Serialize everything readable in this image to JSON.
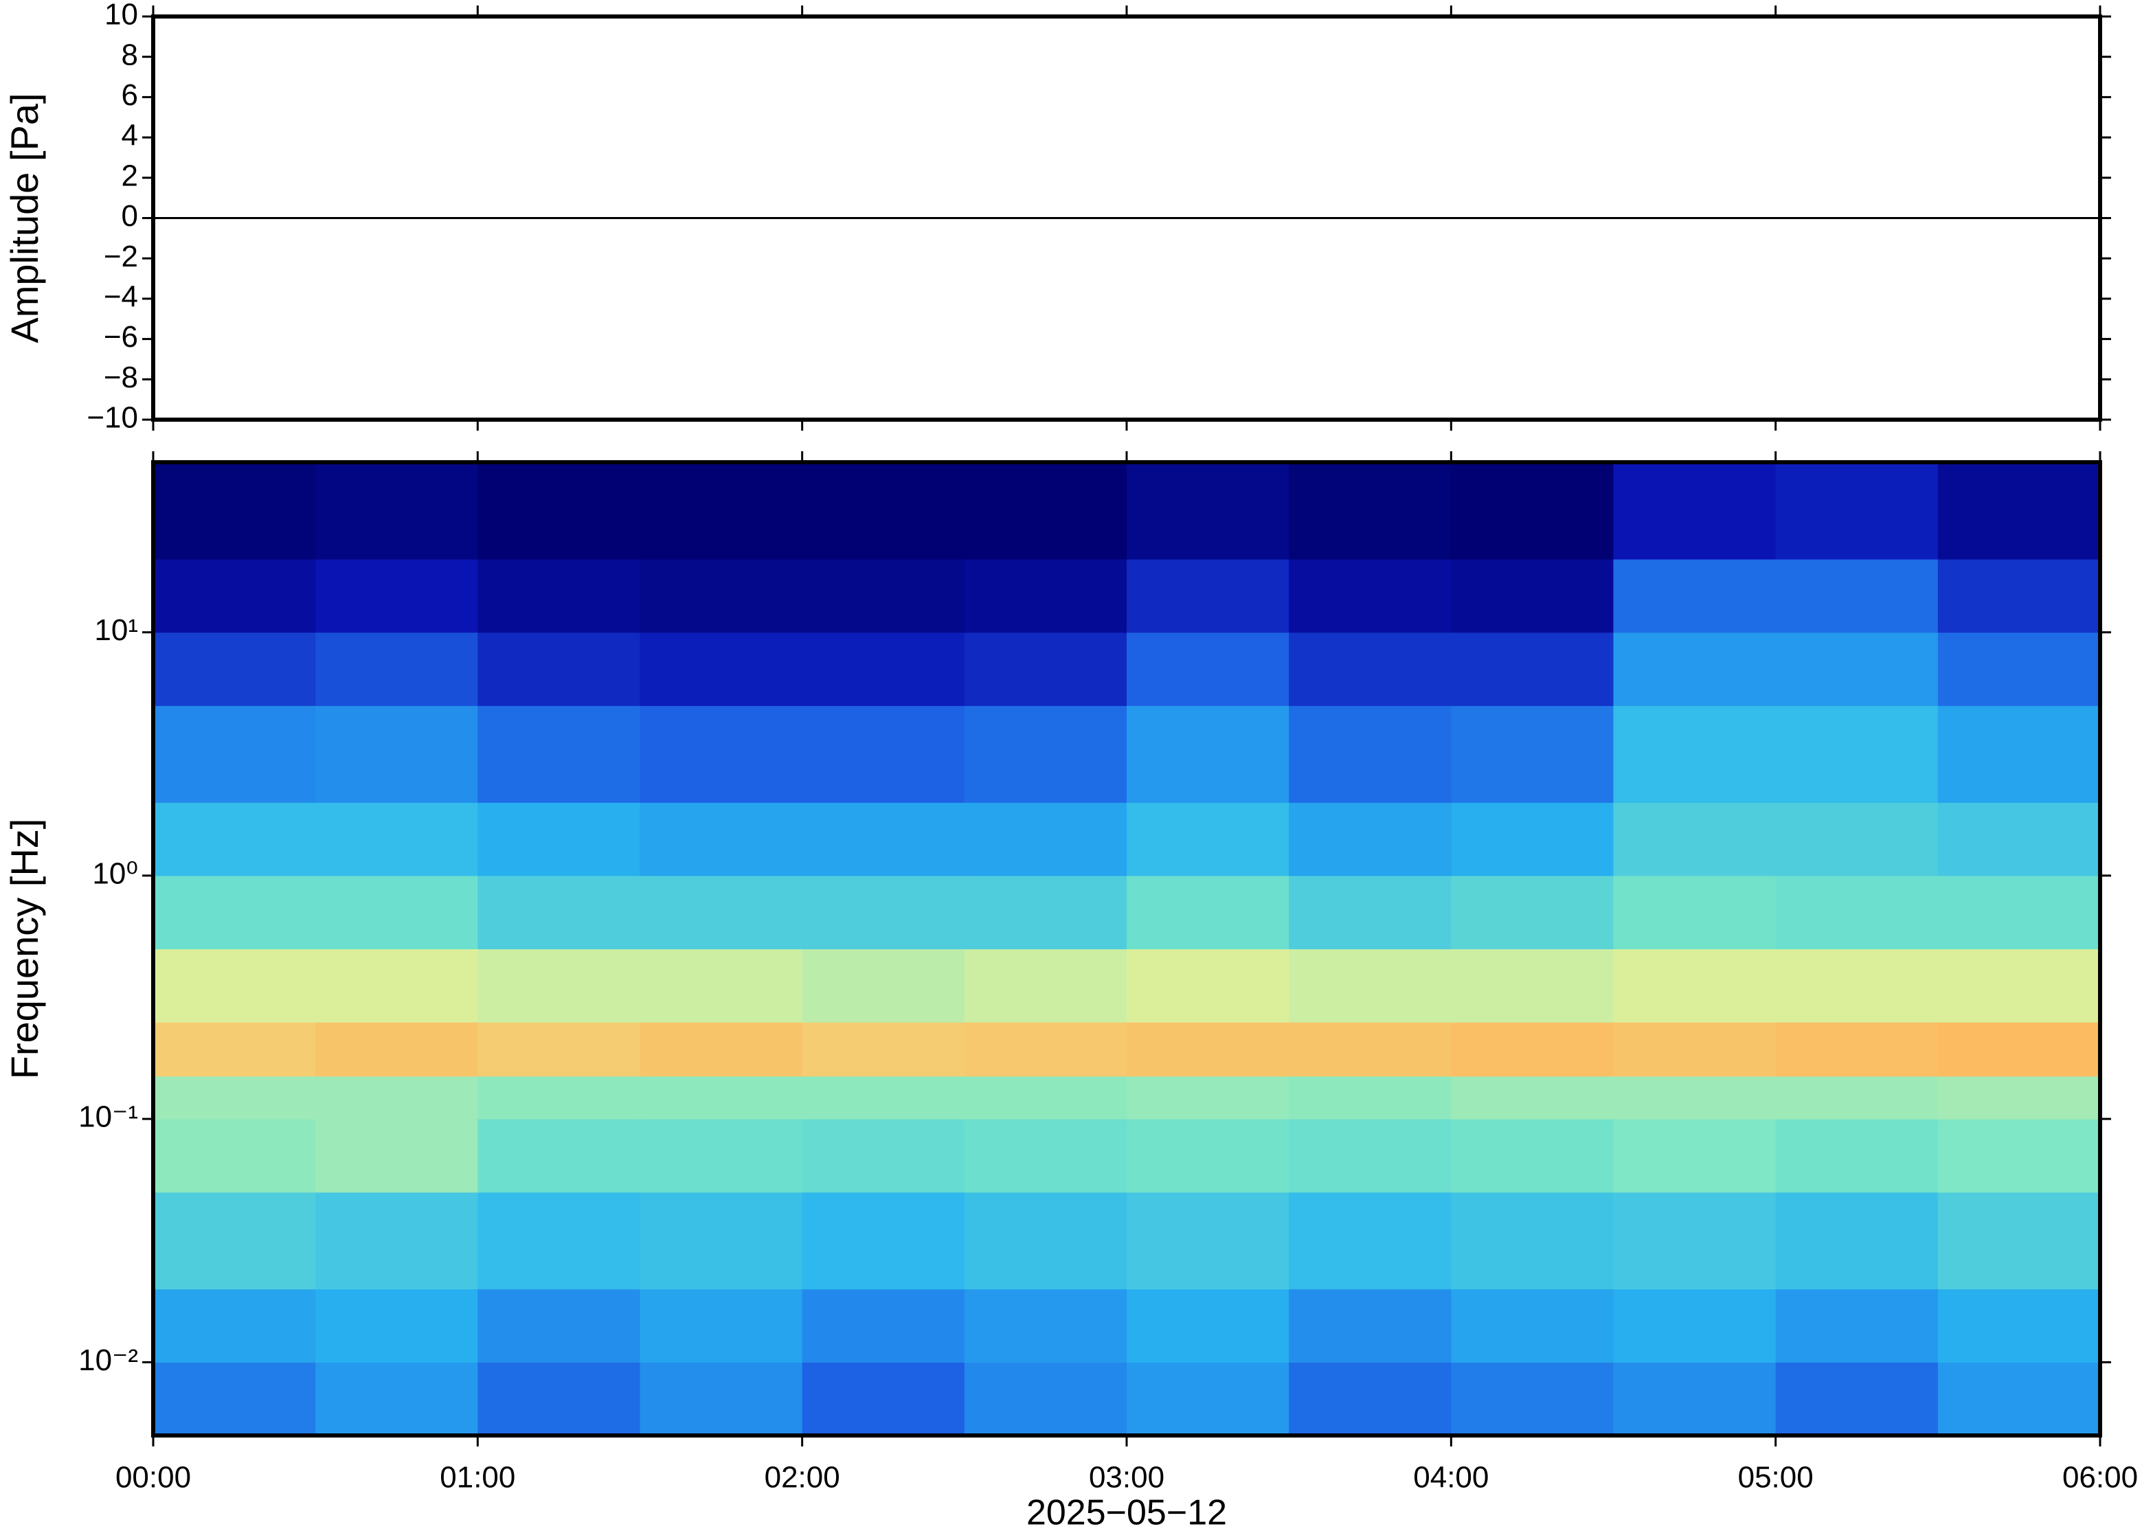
{
  "chart_data": [
    {
      "type": "line",
      "ylabel": "Amplitude [Pa]",
      "x": [
        0,
        0.5,
        1,
        1.5,
        2,
        2.5,
        3,
        3.5,
        4,
        4.5,
        5,
        5.5,
        6
      ],
      "values": [
        0,
        0,
        0,
        0,
        0,
        0,
        0,
        0,
        0,
        0,
        0,
        0,
        0
      ],
      "color": "#000000",
      "xlim": [
        0,
        6
      ],
      "xticks": [
        0,
        1,
        2,
        3,
        4,
        5,
        6
      ],
      "ylim": [
        -10,
        10
      ],
      "yticks": [
        {
          "value": -10,
          "label": "−10"
        },
        {
          "value": -8,
          "label": "−8"
        },
        {
          "value": -6,
          "label": "−6"
        },
        {
          "value": -4,
          "label": "−4"
        },
        {
          "value": -2,
          "label": "−2"
        },
        0,
        2,
        4,
        6,
        8,
        10
      ]
    },
    {
      "type": "heatmap",
      "ylabel": "Frequency [Hz]",
      "xlabel": "2025−05−12",
      "ylog": true,
      "x_edges": [
        0,
        0.5,
        1,
        1.5,
        2,
        2.5,
        3,
        3.5,
        4,
        4.5,
        5,
        5.5,
        6
      ],
      "y_edges": [
        0.005,
        0.01,
        0.02,
        0.05,
        0.1,
        0.15,
        0.25,
        0.5,
        1,
        2,
        5,
        10,
        20,
        50
      ],
      "z": [
        [
          0.33,
          0.38,
          0.3,
          0.36,
          0.28,
          0.35,
          0.38,
          0.3,
          0.33,
          0.36,
          0.3,
          0.38
        ],
        [
          0.4,
          0.42,
          0.36,
          0.4,
          0.35,
          0.38,
          0.42,
          0.36,
          0.4,
          0.42,
          0.38,
          0.42
        ],
        [
          0.5,
          0.48,
          0.45,
          0.46,
          0.44,
          0.46,
          0.48,
          0.45,
          0.47,
          0.48,
          0.46,
          0.5
        ],
        [
          0.6,
          0.62,
          0.55,
          0.55,
          0.54,
          0.55,
          0.56,
          0.55,
          0.56,
          0.58,
          0.56,
          0.58
        ],
        [
          0.62,
          0.62,
          0.6,
          0.6,
          0.6,
          0.6,
          0.61,
          0.6,
          0.62,
          0.62,
          0.62,
          0.63
        ],
        [
          0.8,
          0.82,
          0.8,
          0.82,
          0.8,
          0.81,
          0.82,
          0.82,
          0.83,
          0.82,
          0.83,
          0.84
        ],
        [
          0.7,
          0.7,
          0.68,
          0.68,
          0.66,
          0.68,
          0.7,
          0.68,
          0.68,
          0.7,
          0.7,
          0.7
        ],
        [
          0.55,
          0.55,
          0.5,
          0.5,
          0.5,
          0.5,
          0.55,
          0.5,
          0.52,
          0.56,
          0.55,
          0.55
        ],
        [
          0.45,
          0.45,
          0.42,
          0.4,
          0.4,
          0.4,
          0.45,
          0.4,
          0.42,
          0.5,
          0.5,
          0.48
        ],
        [
          0.35,
          0.36,
          0.3,
          0.28,
          0.28,
          0.3,
          0.38,
          0.3,
          0.32,
          0.45,
          0.45,
          0.4
        ],
        [
          0.22,
          0.25,
          0.18,
          0.16,
          0.16,
          0.18,
          0.28,
          0.2,
          0.2,
          0.38,
          0.38,
          0.3
        ],
        [
          0.1,
          0.14,
          0.08,
          0.06,
          0.06,
          0.08,
          0.18,
          0.1,
          0.08,
          0.3,
          0.3,
          0.2
        ],
        [
          0.02,
          0.04,
          0.01,
          0.01,
          0.01,
          0.01,
          0.06,
          0.02,
          0.01,
          0.14,
          0.16,
          0.08
        ]
      ],
      "color_range": [
        0,
        1
      ],
      "colormap": [
        "#00006e",
        "#0a14b4",
        "#1e64e6",
        "#28b4f0",
        "#78e6c8",
        "#e6f096",
        "#ffb45a",
        "#ff7a3a"
      ],
      "xlim": [
        0,
        6
      ],
      "xticks": [
        {
          "value": 0,
          "label": "00:00"
        },
        {
          "value": 1,
          "label": "01:00"
        },
        {
          "value": 2,
          "label": "02:00"
        },
        {
          "value": 3,
          "label": "03:00"
        },
        {
          "value": 4,
          "label": "04:00"
        },
        {
          "value": 5,
          "label": "05:00"
        },
        {
          "value": 6,
          "label": "06:00"
        }
      ],
      "ylim": [
        0.005,
        50
      ],
      "yticks": [
        {
          "value": 0.01,
          "label": "10⁻²"
        },
        {
          "value": 0.1,
          "label": "10⁻¹"
        },
        {
          "value": 1,
          "label": "10⁰"
        },
        {
          "value": 10,
          "label": "10¹"
        }
      ]
    }
  ]
}
